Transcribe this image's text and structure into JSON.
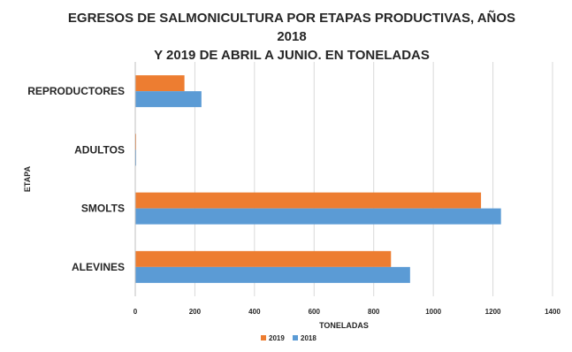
{
  "chart_data": {
    "type": "bar",
    "orientation": "horizontal",
    "title_line1": "EGRESOS DE SALMONICULTURA POR ETAPAS PRODUCTIVAS, AÑOS 2018",
    "title_line2": "Y 2019 DE ABRIL A JUNIO. EN TONELADAS",
    "xlabel": "TONELADAS",
    "ylabel": "ETAPA",
    "xlim": [
      0,
      1400
    ],
    "x_ticks": [
      "0",
      "200",
      "400",
      "600",
      "800",
      "1000",
      "1200",
      "1400"
    ],
    "categories": [
      "REPRODUCTORES",
      "ADULTOS",
      "SMOLTS",
      "ALEVINES"
    ],
    "series": [
      {
        "name": "2019",
        "color": "#ED7D31",
        "values": [
          165,
          2,
          1160,
          858
        ]
      },
      {
        "name": "2018",
        "color": "#5B9BD5",
        "values": [
          222,
          3,
          1227,
          922
        ]
      }
    ],
    "grid": true,
    "legend_position": "bottom"
  }
}
